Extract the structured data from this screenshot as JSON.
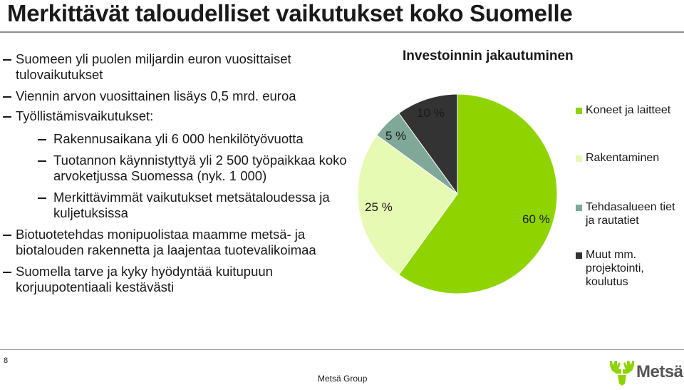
{
  "slide": {
    "title": "Merkittävät taloudelliset vaikutukset koko Suomelle",
    "page_number": "8",
    "footer_company": "Metsä Group",
    "logo_text": "Metsä"
  },
  "bullets": [
    {
      "level": 1,
      "text": "Suomeen yli puolen miljardin euron vuosittaiset tulovaikutukset"
    },
    {
      "level": 1,
      "text": "Viennin arvon vuosittainen lisäys 0,5 mrd. euroa"
    },
    {
      "level": 1,
      "text": "Työllistämisvaikutukset:"
    },
    {
      "level": 2,
      "text": "Rakennusaikana yli 6 000 henkilötyövuotta"
    },
    {
      "level": 2,
      "text": "Tuotannon käynnistyttyä yli 2 500  työpaikkaa koko arvoketjussa Suomessa (nyk. 1 000)"
    },
    {
      "level": 2,
      "text": "Merkittävimmät vaikutukset metsätaloudessa ja kuljetuksissa"
    },
    {
      "level": 1,
      "text": "Biotuotetehdas monipuolistaa maamme metsä- ja biotalouden rakennetta ja laajentaa tuotevalikoimaa"
    },
    {
      "level": 1,
      "text": "Suomella tarve ja kyky hyödyntää kuitupuun korjuupotentiaali kestävästi"
    }
  ],
  "chart_data": {
    "type": "pie",
    "title": "Investoinnin jakautuminen",
    "legend_position": "right",
    "slices": [
      {
        "label": "Koneet ja laitteet",
        "value": 60,
        "display": "60 %",
        "color": "#8fd400"
      },
      {
        "label": "Rakentaminen",
        "value": 25,
        "display": "25 %",
        "color": "#e6fab4"
      },
      {
        "label": "Tehdasalueen tiet ja rautatiet",
        "value": 5,
        "display": "5 %",
        "color": "#7fa898"
      },
      {
        "label": "Muut mm. projektointi, koulutus",
        "value": 10,
        "display": "10 %",
        "color": "#333333"
      }
    ]
  }
}
